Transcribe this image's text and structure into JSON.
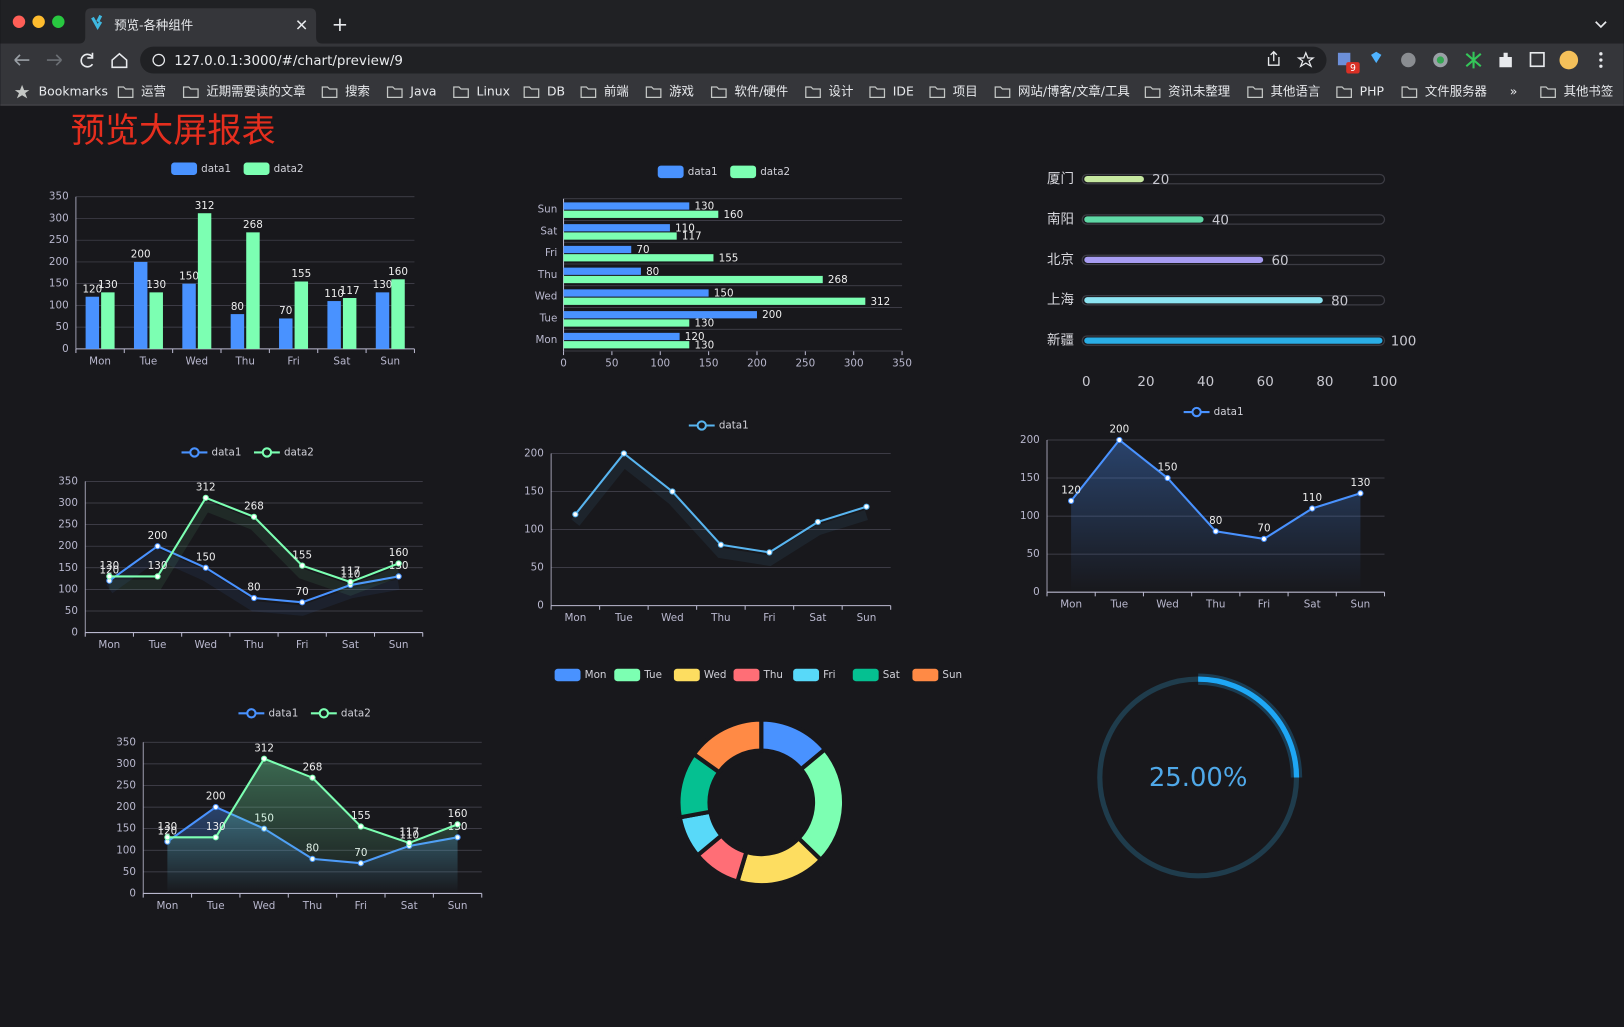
{
  "browser": {
    "tab_title": "预览-各种组件",
    "url": "127.0.0.1:3000/#/chart/preview/9",
    "extension_badge": "9",
    "bookmarks": [
      "Bookmarks",
      "运营",
      "近期需要读的文章",
      "搜索",
      "Java",
      "Linux",
      "DB",
      "前端",
      "游戏",
      "软件/硬件",
      "设计",
      "IDE",
      "项目",
      "网站/博客/文章/工具",
      "资讯未整理",
      "其他语言",
      "PHP",
      "文件服务器",
      "»",
      "其他书签"
    ]
  },
  "title": "预览大屏报表",
  "chart_data": [
    {
      "type": "bar",
      "categories": [
        "Mon",
        "Tue",
        "Wed",
        "Thu",
        "Fri",
        "Sat",
        "Sun"
      ],
      "series": [
        {
          "name": "data1",
          "color": "#4992ff",
          "values": [
            120,
            200,
            150,
            80,
            70,
            110,
            130
          ]
        },
        {
          "name": "data2",
          "color": "#7cffb2",
          "values": [
            130,
            130,
            312,
            268,
            155,
            117,
            160
          ]
        }
      ],
      "ylim": [
        0,
        350
      ],
      "yticks": [
        0,
        50,
        100,
        150,
        200,
        250,
        300,
        350
      ],
      "grid": true,
      "labels": true,
      "legend": "top"
    },
    {
      "type": "bar",
      "horizontal": true,
      "categories": [
        "Mon",
        "Tue",
        "Wed",
        "Thu",
        "Fri",
        "Sat",
        "Sun"
      ],
      "series": [
        {
          "name": "data1",
          "color": "#4992ff",
          "values": [
            120,
            200,
            150,
            80,
            70,
            110,
            130
          ]
        },
        {
          "name": "data2",
          "color": "#7cffb2",
          "values": [
            130,
            130,
            312,
            268,
            155,
            117,
            160
          ]
        }
      ],
      "xlim": [
        0,
        350
      ],
      "xticks": [
        0,
        50,
        100,
        150,
        200,
        250,
        300,
        350
      ],
      "grid": true,
      "labels": true,
      "legend": "top"
    },
    {
      "type": "progress",
      "categories": [
        "厦门",
        "南阳",
        "北京",
        "上海",
        "新疆"
      ],
      "values": [
        20,
        40,
        60,
        80,
        100
      ],
      "colors": [
        "#c6e8a0",
        "#5fd8a6",
        "#a79cf2",
        "#8ce4f2",
        "#2aaee6"
      ],
      "xlim": [
        0,
        100
      ],
      "xticks": [
        0,
        20,
        40,
        60,
        80,
        100
      ],
      "labels": true
    },
    {
      "type": "line",
      "categories": [
        "Mon",
        "Tue",
        "Wed",
        "Thu",
        "Fri",
        "Sat",
        "Sun"
      ],
      "series": [
        {
          "name": "data1",
          "color": "#4992ff",
          "values": [
            120,
            200,
            150,
            80,
            70,
            110,
            130
          ]
        },
        {
          "name": "data2",
          "color": "#7cffb2",
          "values": [
            130,
            130,
            312,
            268,
            155,
            117,
            160
          ]
        }
      ],
      "ylim": [
        0,
        350
      ],
      "yticks": [
        0,
        50,
        100,
        150,
        200,
        250,
        300,
        350
      ],
      "grid": true,
      "labels": true,
      "legend": "top"
    },
    {
      "type": "line",
      "categories": [
        "Mon",
        "Tue",
        "Wed",
        "Thu",
        "Fri",
        "Sat",
        "Sun"
      ],
      "series": [
        {
          "name": "data1",
          "color": "#58b5f0",
          "values": [
            120,
            200,
            150,
            80,
            70,
            110,
            130
          ]
        }
      ],
      "ylim": [
        0,
        200
      ],
      "yticks": [
        0,
        50,
        100,
        150,
        200
      ],
      "grid": true,
      "labels": false,
      "legend": "top"
    },
    {
      "type": "area",
      "categories": [
        "Mon",
        "Tue",
        "Wed",
        "Thu",
        "Fri",
        "Sat",
        "Sun"
      ],
      "series": [
        {
          "name": "data1",
          "color": "#4992ff",
          "values": [
            120,
            200,
            150,
            80,
            70,
            110,
            130
          ]
        }
      ],
      "ylim": [
        0,
        200
      ],
      "yticks": [
        0,
        50,
        100,
        150,
        200
      ],
      "grid": true,
      "labels": true,
      "legend": "top"
    },
    {
      "type": "area",
      "categories": [
        "Mon",
        "Tue",
        "Wed",
        "Thu",
        "Fri",
        "Sat",
        "Sun"
      ],
      "series": [
        {
          "name": "data1",
          "color": "#4992ff",
          "values": [
            120,
            200,
            150,
            80,
            70,
            110,
            130
          ]
        },
        {
          "name": "data2",
          "color": "#7cffb2",
          "values": [
            130,
            130,
            312,
            268,
            155,
            117,
            160
          ]
        }
      ],
      "ylim": [
        0,
        350
      ],
      "yticks": [
        0,
        50,
        100,
        150,
        200,
        250,
        300,
        350
      ],
      "grid": true,
      "labels": true,
      "legend": "top"
    },
    {
      "type": "pie",
      "donut": true,
      "categories": [
        "Mon",
        "Tue",
        "Wed",
        "Thu",
        "Fri",
        "Sat",
        "Sun"
      ],
      "values": [
        120,
        200,
        150,
        80,
        70,
        110,
        130
      ],
      "colors": [
        "#4992ff",
        "#7cffb2",
        "#fddd60",
        "#ff6e76",
        "#58d9f9",
        "#05c091",
        "#ff8a45"
      ],
      "legend": "top"
    },
    {
      "type": "gauge",
      "value": 25,
      "value_label": "25.00%",
      "range": [
        0,
        100
      ],
      "color": "#1ea7f5"
    }
  ]
}
